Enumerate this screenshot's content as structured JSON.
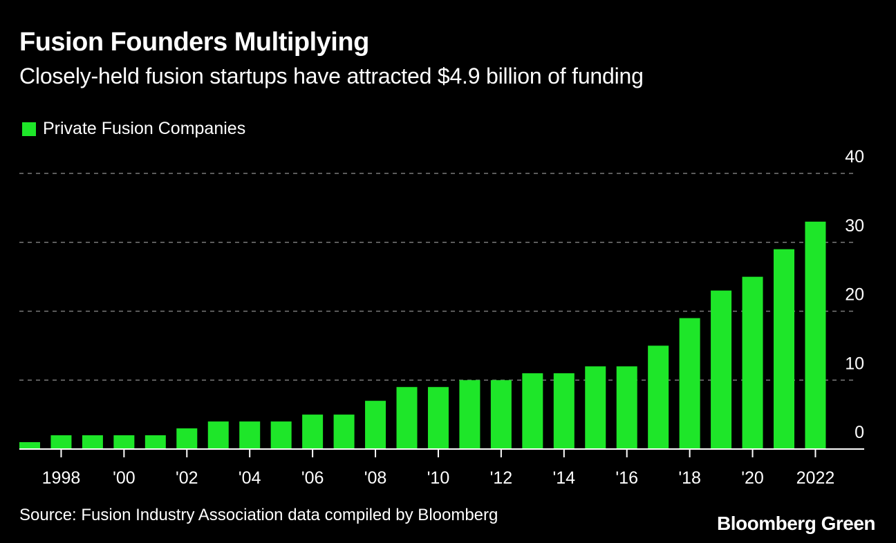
{
  "header": {
    "title": "Fusion Founders Multiplying",
    "subtitle": "Closely-held fusion startups have attracted $4.9 billion of funding"
  },
  "legend": {
    "label": "Private Fusion Companies"
  },
  "footer": {
    "source": "Source: Fusion Industry Association data compiled by Bloomberg",
    "brand": "Bloomberg Green"
  },
  "colors": {
    "background": "#000000",
    "bar": "#1ee629",
    "grid": "#7a7a7a",
    "text": "#ffffff"
  },
  "chart_data": {
    "type": "bar",
    "title": "Fusion Founders Multiplying",
    "subtitle": "Closely-held fusion startups have attracted $4.9 billion of funding",
    "xlabel": "",
    "ylabel": "",
    "ylim": [
      0,
      40
    ],
    "yticks": [
      0,
      10,
      20,
      30,
      40
    ],
    "y_axis_position": "right",
    "grid": true,
    "legend_position": "top-left",
    "categories": [
      1997,
      1998,
      1999,
      2000,
      2001,
      2002,
      2003,
      2004,
      2005,
      2006,
      2007,
      2008,
      2009,
      2010,
      2011,
      2012,
      2013,
      2014,
      2015,
      2016,
      2017,
      2018,
      2019,
      2020,
      2021,
      2022
    ],
    "x_tick_labels": [
      {
        "year": 1998,
        "label": "1998"
      },
      {
        "year": 2000,
        "label": "'00"
      },
      {
        "year": 2002,
        "label": "'02"
      },
      {
        "year": 2004,
        "label": "'04"
      },
      {
        "year": 2006,
        "label": "'06"
      },
      {
        "year": 2008,
        "label": "'08"
      },
      {
        "year": 2010,
        "label": "'10"
      },
      {
        "year": 2012,
        "label": "'12"
      },
      {
        "year": 2014,
        "label": "'14"
      },
      {
        "year": 2016,
        "label": "'16"
      },
      {
        "year": 2018,
        "label": "'18"
      },
      {
        "year": 2020,
        "label": "'20"
      },
      {
        "year": 2022,
        "label": "2022"
      }
    ],
    "series": [
      {
        "name": "Private Fusion Companies",
        "values": [
          1,
          2,
          2,
          2,
          2,
          3,
          4,
          4,
          4,
          5,
          5,
          7,
          9,
          9,
          10,
          10,
          11,
          11,
          12,
          12,
          15,
          19,
          23,
          25,
          29,
          33
        ]
      }
    ]
  }
}
